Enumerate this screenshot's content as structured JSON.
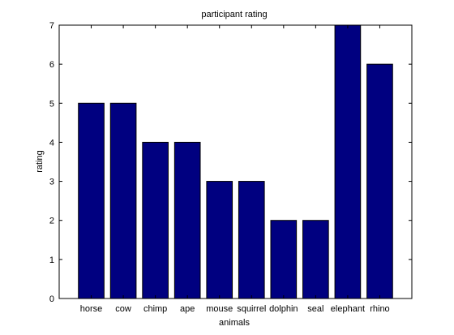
{
  "chart_data": {
    "type": "bar",
    "title": "participant rating",
    "xlabel": "animals",
    "ylabel": "rating",
    "categories": [
      "horse",
      "cow",
      "chimp",
      "ape",
      "mouse",
      "squirrel",
      "dolphin",
      "seal",
      "elephant",
      "rhino"
    ],
    "values": [
      5,
      5,
      4,
      4,
      3,
      3,
      2,
      2,
      7,
      6
    ],
    "ylim": [
      0,
      7
    ],
    "yticks": [
      "0",
      "1",
      "2",
      "3",
      "4",
      "5",
      "6",
      "7"
    ],
    "xlim": [
      0,
      11
    ],
    "grid": false,
    "bar_color": "#000080",
    "background": "#ffffff"
  }
}
